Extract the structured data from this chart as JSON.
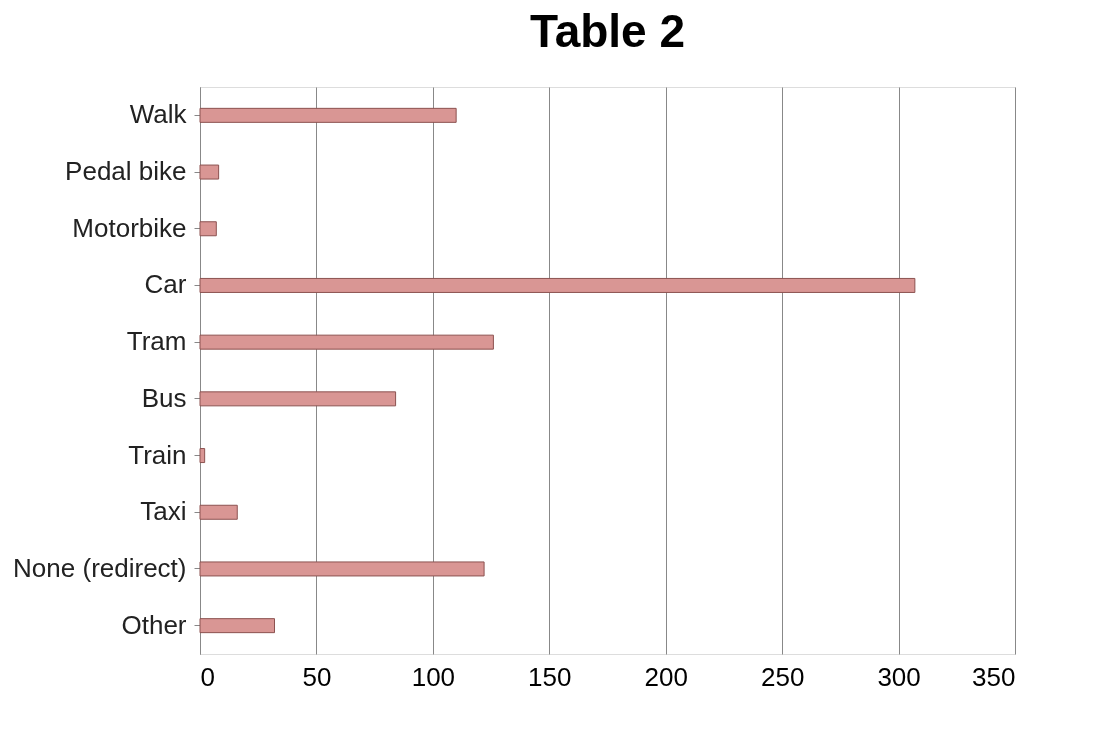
{
  "chart_data": {
    "type": "bar",
    "orientation": "horizontal",
    "title": "Table 2",
    "categories": [
      "Walk",
      "Pedal bike",
      "Motorbike",
      "Car",
      "Tram",
      "Bus",
      "Train",
      "Taxi",
      "None (redirect)",
      "Other"
    ],
    "values": [
      110,
      8,
      7,
      307,
      126,
      84,
      2,
      16,
      122,
      32
    ],
    "color": "#d99694",
    "xlim": [
      0,
      350
    ],
    "xticks": [
      0,
      50,
      100,
      150,
      200,
      250,
      300,
      350
    ],
    "grid": "x"
  }
}
